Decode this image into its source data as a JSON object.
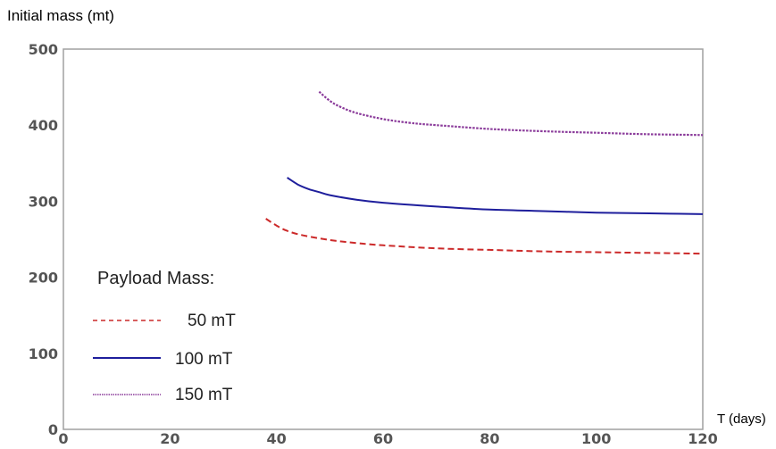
{
  "chart_data": {
    "type": "line",
    "ylabel": "Initial mass (mt)",
    "xlabel": "T (days)",
    "xlim": [
      0,
      120
    ],
    "ylim": [
      0,
      500
    ],
    "x_ticks": [
      "0",
      "20",
      "40",
      "60",
      "80",
      "100",
      "120"
    ],
    "y_ticks": [
      "0",
      "100",
      "200",
      "300",
      "400",
      "500"
    ],
    "grid": false,
    "legend": {
      "title": "Payload Mass:",
      "placement": "lower-left",
      "entries": [
        "50 mT",
        "100 mT",
        "150 mT"
      ]
    },
    "series": [
      {
        "name": "50 mT",
        "color": "#cc2a2a",
        "style": "dashed",
        "x": [
          38,
          40,
          42,
          45,
          50,
          55,
          60,
          70,
          80,
          90,
          100,
          110,
          120
        ],
        "y": [
          277,
          268,
          261,
          255,
          249,
          245,
          242,
          238,
          236,
          234,
          233,
          232,
          231
        ]
      },
      {
        "name": "100 mT",
        "color": "#1e1e9c",
        "style": "solid",
        "x": [
          42,
          44,
          46,
          48,
          50,
          55,
          60,
          70,
          80,
          90,
          100,
          110,
          120
        ],
        "y": [
          331,
          322,
          316,
          312,
          308,
          302,
          298,
          293,
          289,
          287,
          285,
          284,
          283
        ]
      },
      {
        "name": "150 mT",
        "color": "#8a3a9a",
        "style": "dotted",
        "x": [
          48,
          50,
          52,
          55,
          60,
          65,
          70,
          80,
          90,
          100,
          110,
          120
        ],
        "y": [
          444,
          432,
          424,
          416,
          408,
          403,
          400,
          395,
          392,
          390,
          388,
          387
        ]
      }
    ]
  }
}
